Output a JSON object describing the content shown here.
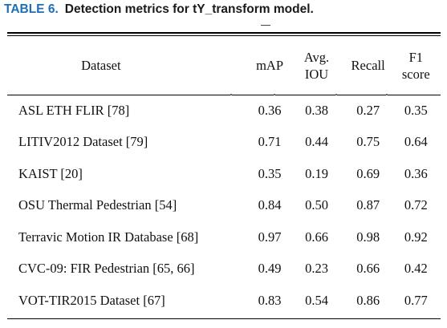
{
  "caption": {
    "label": "TABLE 6.",
    "title": "Detection metrics for tY_transform model."
  },
  "table": {
    "headers": {
      "dataset": "Dataset",
      "map": "mAP",
      "iou_line1": "Avg.",
      "iou_line2": "IOU",
      "recall": "Recall",
      "f1_line1": "F1",
      "f1_line2": "score"
    },
    "rows": [
      {
        "dataset": "ASL ETH FLIR [78]",
        "map": "0.36",
        "iou": "0.38",
        "recall": "0.27",
        "f1": "0.35"
      },
      {
        "dataset": "LITIV2012 Dataset [79]",
        "map": "0.71",
        "iou": "0.44",
        "recall": "0.75",
        "f1": "0.64"
      },
      {
        "dataset": "KAIST [20]",
        "map": "0.35",
        "iou": "0.19",
        "recall": "0.69",
        "f1": "0.36"
      },
      {
        "dataset": "OSU Thermal Pedestrian [54]",
        "map": "0.84",
        "iou": "0.50",
        "recall": "0.87",
        "f1": "0.72"
      },
      {
        "dataset": "Terravic Motion IR Database [68]",
        "map": "0.97",
        "iou": "0.66",
        "recall": "0.98",
        "f1": "0.92"
      },
      {
        "dataset": "CVC-09: FIR Pedestrian [65, 66]",
        "map": "0.49",
        "iou": "0.23",
        "recall": "0.66",
        "f1": "0.42"
      },
      {
        "dataset": "VOT-TIR2015 Dataset [67]",
        "map": "0.83",
        "iou": "0.54",
        "recall": "0.86",
        "f1": "0.77"
      }
    ]
  }
}
